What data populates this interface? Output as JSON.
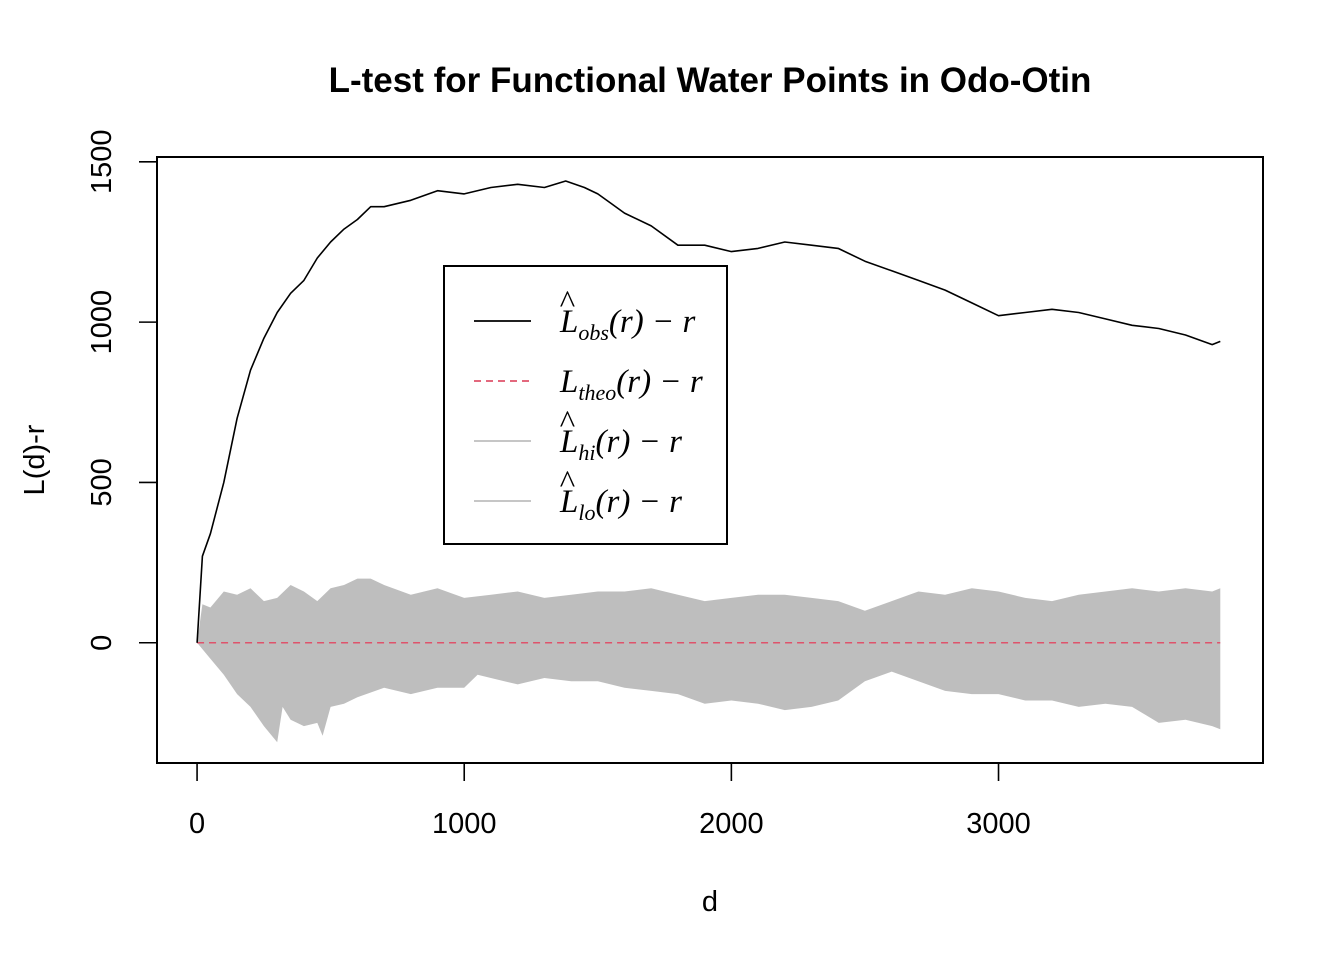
{
  "colors": {
    "observed": "#000000",
    "theoretical": "#DF536B",
    "envelope": "#BEBEBE",
    "frame": "#000000"
  },
  "chart_data": {
    "type": "line",
    "title": "L-test for Functional Water Points in Odo-Otin",
    "xlabel": "d",
    "ylabel": "L(d)-r",
    "xlim": [
      -150,
      3990
    ],
    "ylim": [
      -375,
      1515
    ],
    "x_ticks": [
      0,
      1000,
      2000,
      3000
    ],
    "y_ticks": [
      0,
      500,
      1000,
      1500
    ],
    "x_tick_labels": [
      "0",
      "1000",
      "2000",
      "3000"
    ],
    "y_tick_labels": [
      "0",
      "500",
      "1000",
      "1500"
    ],
    "grid": false,
    "legend": {
      "position": "upper-center",
      "entries": [
        {
          "base": "L",
          "hat": "^",
          "sub": "obs",
          "rest": "(r) − r",
          "style": "solid",
          "color": "observed"
        },
        {
          "base": "L",
          "hat": "",
          "sub": "theo",
          "rest": "(r) − r",
          "style": "dashed",
          "color": "theoretical"
        },
        {
          "base": "L",
          "hat": "^",
          "sub": "hi",
          "rest": "(r) − r",
          "style": "solid",
          "color": "envelope"
        },
        {
          "base": "L",
          "hat": "^",
          "sub": "lo",
          "rest": "(r) − r",
          "style": "solid",
          "color": "envelope"
        }
      ]
    },
    "series": [
      {
        "key": "obs",
        "x": [
          0,
          20,
          50,
          100,
          150,
          200,
          250,
          300,
          350,
          400,
          450,
          500,
          550,
          600,
          650,
          700,
          800,
          900,
          1000,
          1100,
          1200,
          1300,
          1380,
          1450,
          1500,
          1550,
          1600,
          1700,
          1800,
          1900,
          2000,
          2100,
          2200,
          2300,
          2400,
          2500,
          2600,
          2700,
          2800,
          2900,
          3000,
          3100,
          3200,
          3300,
          3400,
          3500,
          3600,
          3700,
          3800,
          3830
        ],
        "y": [
          0,
          270,
          340,
          500,
          700,
          850,
          950,
          1030,
          1090,
          1130,
          1200,
          1250,
          1290,
          1320,
          1360,
          1360,
          1380,
          1410,
          1400,
          1420,
          1430,
          1420,
          1440,
          1420,
          1400,
          1370,
          1340,
          1300,
          1240,
          1240,
          1220,
          1230,
          1250,
          1240,
          1230,
          1190,
          1160,
          1130,
          1100,
          1060,
          1020,
          1030,
          1040,
          1030,
          1010,
          990,
          980,
          960,
          930,
          940
        ]
      },
      {
        "key": "theo",
        "x": [
          0,
          3830
        ],
        "y": [
          0,
          0
        ]
      },
      {
        "key": "hi",
        "x": [
          0,
          20,
          50,
          100,
          150,
          200,
          250,
          300,
          350,
          400,
          450,
          500,
          550,
          600,
          650,
          700,
          800,
          900,
          1000,
          1100,
          1200,
          1300,
          1400,
          1500,
          1600,
          1700,
          1800,
          1900,
          2000,
          2100,
          2200,
          2300,
          2400,
          2500,
          2600,
          2700,
          2800,
          2900,
          3000,
          3100,
          3200,
          3300,
          3400,
          3500,
          3600,
          3700,
          3800,
          3830
        ],
        "y": [
          0,
          120,
          110,
          160,
          150,
          170,
          130,
          140,
          180,
          160,
          130,
          170,
          180,
          200,
          200,
          180,
          150,
          170,
          140,
          150,
          160,
          140,
          150,
          160,
          160,
          170,
          150,
          130,
          140,
          150,
          150,
          140,
          130,
          100,
          130,
          160,
          150,
          170,
          160,
          140,
          130,
          150,
          160,
          170,
          160,
          170,
          160,
          170
        ]
      },
      {
        "key": "lo",
        "x": [
          0,
          50,
          100,
          150,
          200,
          250,
          300,
          320,
          350,
          400,
          450,
          470,
          500,
          550,
          600,
          700,
          800,
          900,
          1000,
          1050,
          1100,
          1200,
          1300,
          1400,
          1500,
          1600,
          1700,
          1800,
          1900,
          2000,
          2100,
          2200,
          2300,
          2400,
          2500,
          2600,
          2700,
          2800,
          2900,
          3000,
          3100,
          3200,
          3300,
          3400,
          3500,
          3600,
          3700,
          3800,
          3830
        ],
        "y": [
          0,
          -50,
          -100,
          -160,
          -200,
          -260,
          -310,
          -200,
          -240,
          -260,
          -250,
          -290,
          -200,
          -190,
          -170,
          -140,
          -160,
          -140,
          -140,
          -100,
          -110,
          -130,
          -110,
          -120,
          -120,
          -140,
          -150,
          -160,
          -190,
          -180,
          -190,
          -210,
          -200,
          -180,
          -120,
          -90,
          -120,
          -150,
          -160,
          -160,
          -180,
          -180,
          -200,
          -190,
          -200,
          -250,
          -240,
          -260,
          -270
        ]
      }
    ]
  }
}
